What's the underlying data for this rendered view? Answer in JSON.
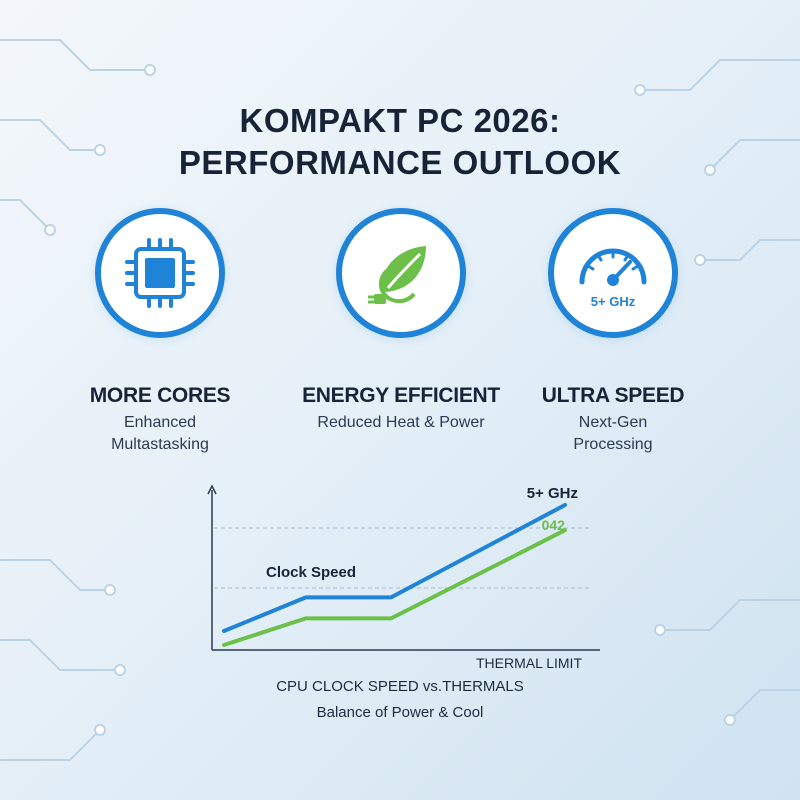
{
  "title": {
    "line1": "KOMPAKT PC 2026:",
    "line2": "PERFORMANCE OUTLOOK"
  },
  "features": [
    {
      "icon": "cpu-chip-icon",
      "heading": "MORE CORES",
      "sub_line1": "Enhanced",
      "sub_line2": "Multastasking"
    },
    {
      "icon": "leaf-plug-icon",
      "heading": "ENERGY EFFICIENT",
      "sub_line1": "Reduced Heat & Power",
      "sub_line2": ""
    },
    {
      "icon": "speedometer-icon",
      "heading": "ULTRA SPEED",
      "sub_line1": "Next-Gen",
      "sub_line2": "Processing",
      "icon_label": "5+ GHz"
    }
  ],
  "colors": {
    "accent_blue": "#1f83d8",
    "accent_green": "#6cc04a",
    "title_dark": "#172438"
  },
  "chart_data": {
    "type": "line",
    "x_label": "THERMAL LIMIT",
    "series": [
      {
        "name": "Clock Speed",
        "color": "#1f83d8",
        "end_label": "5+ GHz",
        "values": [
          0.1,
          0.34,
          0.34,
          1.0
        ]
      },
      {
        "name": "",
        "color": "#6cc04a",
        "end_label": "042",
        "values": [
          0.0,
          0.19,
          0.19,
          0.82
        ]
      }
    ],
    "x": [
      0,
      0.24,
      0.49,
      1.0
    ],
    "grid": "dashed horizontal",
    "caption_line1": "CPU CLOCK SPEED vs.THERMALS",
    "caption_line2": "Balance of Power & Cool"
  }
}
